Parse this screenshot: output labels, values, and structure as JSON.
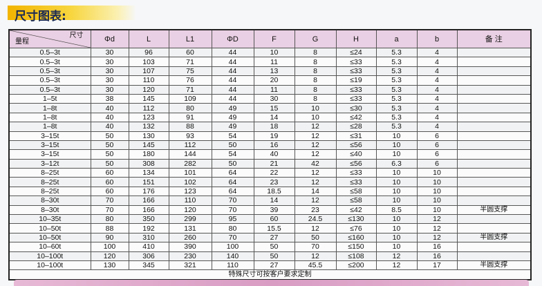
{
  "title": "尺寸图表:",
  "header": {
    "corner_top": "尺寸",
    "corner_bottom": "量程",
    "columns": [
      "Φd",
      "L",
      "L1",
      "ΦD",
      "F",
      "G",
      "H",
      "a",
      "b",
      "备 注"
    ]
  },
  "rows": [
    [
      "0.5–3t",
      "30",
      "96",
      "60",
      "44",
      "10",
      "8",
      "≤24",
      "5.3",
      "4",
      ""
    ],
    [
      "0.5–3t",
      "30",
      "103",
      "71",
      "44",
      "11",
      "8",
      "≤33",
      "5.3",
      "4",
      ""
    ],
    [
      "0.5–3t",
      "30",
      "107",
      "75",
      "44",
      "13",
      "8",
      "≤33",
      "5.3",
      "4",
      ""
    ],
    [
      "0.5–3t",
      "30",
      "110",
      "76",
      "44",
      "20",
      "8",
      "≤19",
      "5.3",
      "4",
      ""
    ],
    [
      "0.5–3t",
      "30",
      "120",
      "71",
      "44",
      "11",
      "8",
      "≤33",
      "5.3",
      "4",
      ""
    ],
    [
      "1–5t",
      "38",
      "145",
      "109",
      "44",
      "30",
      "8",
      "≤33",
      "5.3",
      "4",
      ""
    ],
    [
      "1–8t",
      "40",
      "112",
      "80",
      "49",
      "15",
      "10",
      "≤30",
      "5.3",
      "4",
      ""
    ],
    [
      "1–8t",
      "40",
      "123",
      "91",
      "49",
      "14",
      "10",
      "≤42",
      "5.3",
      "4",
      ""
    ],
    [
      "1–8t",
      "40",
      "132",
      "88",
      "49",
      "18",
      "12",
      "≤28",
      "5.3",
      "4",
      ""
    ],
    [
      "3–15t",
      "50",
      "130",
      "93",
      "54",
      "19",
      "12",
      "≤31",
      "10",
      "6",
      ""
    ],
    [
      "3–15t",
      "50",
      "145",
      "112",
      "50",
      "16",
      "12",
      "≤56",
      "10",
      "6",
      ""
    ],
    [
      "3–15t",
      "50",
      "180",
      "144",
      "54",
      "40",
      "12",
      "≤40",
      "10",
      "6",
      ""
    ],
    [
      "3–12t",
      "50",
      "308",
      "282",
      "50",
      "21",
      "42",
      "≤56",
      "6.3",
      "6",
      ""
    ],
    [
      "8–25t",
      "60",
      "134",
      "101",
      "64",
      "22",
      "12",
      "≤33",
      "10",
      "10",
      ""
    ],
    [
      "8–25t",
      "60",
      "151",
      "102",
      "64",
      "23",
      "12",
      "≤33",
      "10",
      "10",
      ""
    ],
    [
      "8–25t",
      "60",
      "176",
      "123",
      "64",
      "18.5",
      "14",
      "≤58",
      "10",
      "10",
      ""
    ],
    [
      "8–30t",
      "70",
      "166",
      "110",
      "70",
      "14",
      "12",
      "≤58",
      "10",
      "10",
      ""
    ],
    [
      "8–30t",
      "70",
      "166",
      "120",
      "70",
      "39",
      "23",
      "≤42",
      "8.5",
      "10",
      "半圆支撑"
    ],
    [
      "10–35t",
      "80",
      "350",
      "299",
      "95",
      "60",
      "24.5",
      "≤130",
      "10",
      "12",
      ""
    ],
    [
      "10–50t",
      "88",
      "192",
      "131",
      "80",
      "15.5",
      "12",
      "≤76",
      "10",
      "12",
      ""
    ],
    [
      "10–50t",
      "90",
      "310",
      "260",
      "70",
      "27",
      "50",
      "≤160",
      "10",
      "12",
      "半圆支撑"
    ],
    [
      "10–60t",
      "100",
      "410",
      "390",
      "100",
      "50",
      "70",
      "≤150",
      "10",
      "16",
      ""
    ],
    [
      "10–100t",
      "120",
      "306",
      "230",
      "140",
      "50",
      "12",
      "≤108",
      "12",
      "16",
      ""
    ],
    [
      "10–100t",
      "130",
      "345",
      "321",
      "110",
      "27",
      "45.5",
      "≤200",
      "12",
      "17",
      "半圆支撑"
    ]
  ],
  "footer": "特殊尺寸可按客户要求定制"
}
